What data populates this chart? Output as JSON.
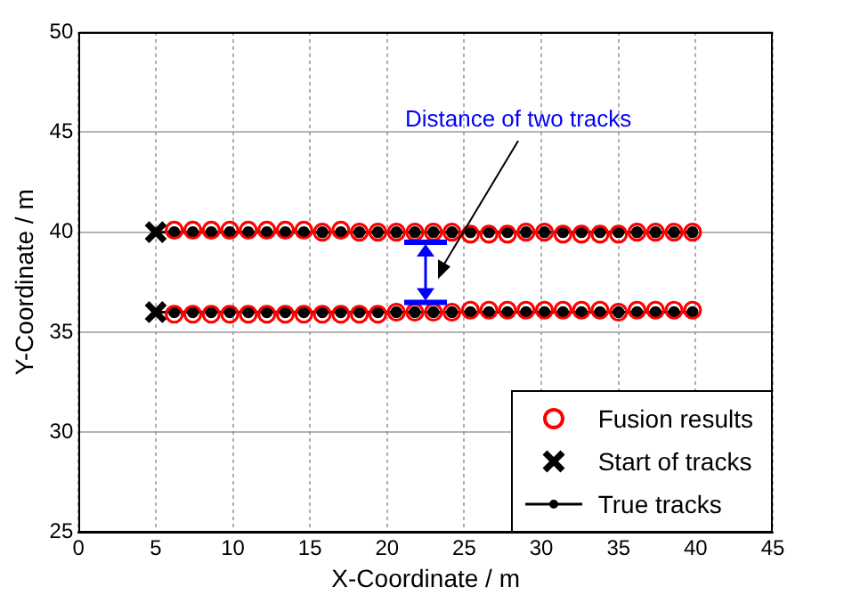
{
  "chart_data": {
    "type": "scatter",
    "xlabel": "X-Coordinate / m",
    "ylabel": "Y-Coordinate / m",
    "xlim": [
      0,
      45
    ],
    "xticks": [
      0,
      5,
      10,
      15,
      20,
      25,
      30,
      35,
      40,
      45
    ],
    "ylim": [
      25,
      50
    ],
    "yticks": [
      25,
      30,
      35,
      40,
      45,
      50
    ],
    "grid": true,
    "legend": "bottom right",
    "annotations": [
      "Distance of two tracks"
    ],
    "series": [
      {
        "name": "Fusion results",
        "marker": "circle",
        "color": "#ff0000",
        "x": [
          6.2,
          7.4,
          8.6,
          9.8,
          11,
          12.2,
          13.4,
          14.6,
          15.8,
          17,
          18.2,
          19.4,
          20.6,
          21.8,
          23,
          24.2,
          25.4,
          26.6,
          27.8,
          29,
          30.2,
          31.4,
          32.6,
          33.8,
          35,
          36.2,
          37.4,
          38.6,
          39.8
        ],
        "values": [
          40.1,
          40.1,
          40.1,
          40.1,
          40.1,
          40.1,
          40.1,
          40.1,
          40,
          40.1,
          40,
          40,
          40,
          40,
          40,
          40,
          39.9,
          39.9,
          39.9,
          40,
          40,
          39.9,
          39.9,
          39.9,
          39.9,
          40,
          40,
          40,
          40
        ]
      },
      {
        "marker": "circle",
        "color": "#ff0000",
        "x": [
          6.2,
          7.4,
          8.6,
          9.8,
          11,
          12.2,
          13.4,
          14.6,
          15.8,
          17,
          18.2,
          19.4,
          20.6,
          21.8,
          23,
          24.2,
          25.4,
          26.6,
          27.8,
          29,
          30.2,
          31.4,
          32.6,
          33.8,
          35,
          36.2,
          37.4,
          38.6,
          39.8
        ],
        "values": [
          35.9,
          35.9,
          35.9,
          35.9,
          35.9,
          35.9,
          35.9,
          35.9,
          35.9,
          35.9,
          35.9,
          35.9,
          36,
          36,
          36,
          36,
          36.1,
          36.1,
          36.1,
          36.1,
          36.1,
          36.1,
          36.1,
          36.1,
          36,
          36.1,
          36.1,
          36.1,
          36.1
        ]
      },
      {
        "name": "Start of tracks",
        "marker": "cross",
        "color": "#000000",
        "x": [
          5,
          5
        ],
        "values": [
          40,
          36
        ]
      },
      {
        "name": "True tracks",
        "type": "line",
        "marker": "circle",
        "color": "#000000",
        "x": [
          5,
          6.2,
          7.4,
          8.6,
          9.8,
          11,
          12.2,
          13.4,
          14.6,
          15.8,
          17,
          18.2,
          19.4,
          20.6,
          21.8,
          23,
          24.2,
          25.4,
          26.6,
          27.8,
          29,
          30.2,
          31.4,
          32.6,
          33.8,
          35,
          36.2,
          37.4,
          38.6,
          39.8
        ],
        "values": [
          40,
          40,
          40,
          40,
          40,
          40,
          40,
          40,
          40,
          40,
          40,
          40,
          40,
          40,
          40,
          40,
          40,
          40,
          40,
          40,
          40,
          40,
          40,
          40,
          40,
          40,
          40,
          40,
          40,
          40
        ]
      },
      {
        "type": "line",
        "marker": "circle",
        "color": "#000000",
        "x": [
          5,
          6.2,
          7.4,
          8.6,
          9.8,
          11,
          12.2,
          13.4,
          14.6,
          15.8,
          17,
          18.2,
          19.4,
          20.6,
          21.8,
          23,
          24.2,
          25.4,
          26.6,
          27.8,
          29,
          30.2,
          31.4,
          32.6,
          33.8,
          35,
          36.2,
          37.4,
          38.6,
          39.8
        ],
        "values": [
          36,
          36,
          36,
          36,
          36,
          36,
          36,
          36,
          36,
          36,
          36,
          36,
          36,
          36,
          36,
          36,
          36,
          36,
          36,
          36,
          36,
          36,
          36,
          36,
          36,
          36,
          36,
          36,
          36,
          36
        ]
      }
    ]
  }
}
